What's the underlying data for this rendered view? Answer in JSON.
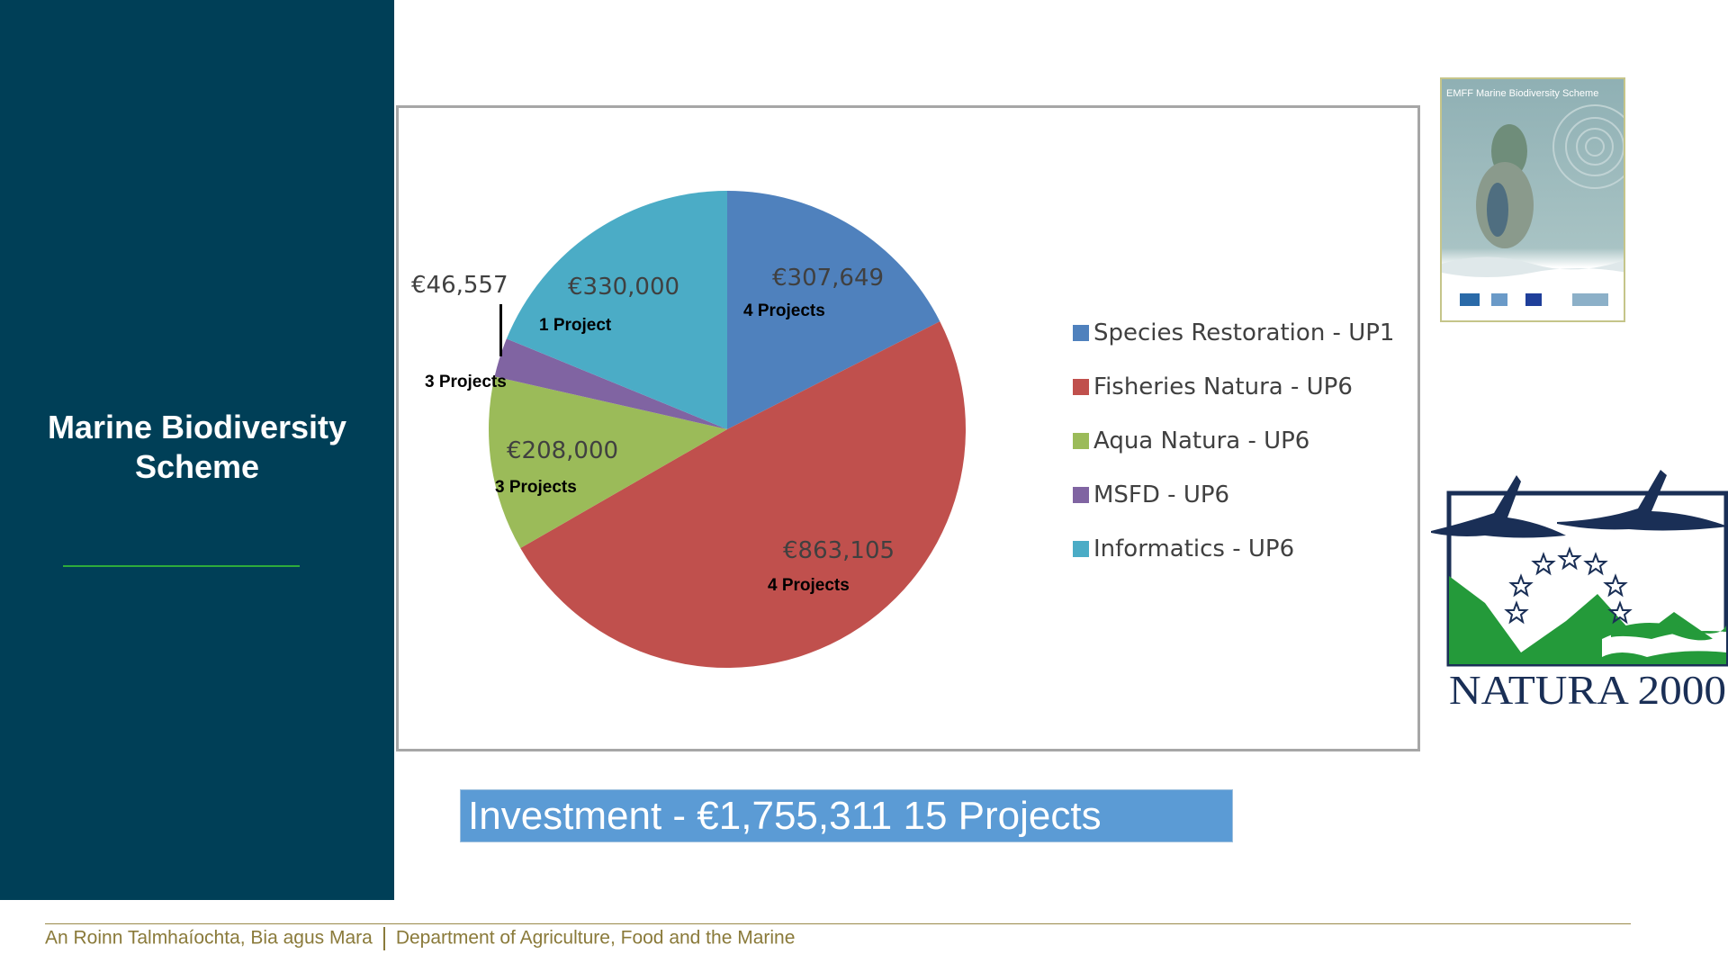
{
  "sidebar": {
    "title_line1": "Marine Biodiversity",
    "title_line2": "Scheme"
  },
  "chart_data": {
    "type": "pie",
    "title": "",
    "start_angle": "12 o'clock, clockwise",
    "categories": [
      "Species Restoration - UP1",
      "Fisheries Natura - UP6",
      "Aqua Natura -  UP6",
      "MSFD - UP6",
      "Informatics - UP6"
    ],
    "values": [
      307649,
      863105,
      208000,
      46557,
      330000
    ],
    "value_labels": [
      "€307,649",
      "€863,105",
      "€208,000",
      "€46,557",
      "€330,000"
    ],
    "project_labels": [
      "4 Projects",
      "4 Projects",
      "3 Projects",
      "3 Projects",
      "1 Project"
    ],
    "colors": [
      "#4f81bd",
      "#c0504d",
      "#9bbb59",
      "#8064a2",
      "#4bacc6"
    ],
    "legend": {
      "placement": "right"
    }
  },
  "investment_text": "Investment - €1,755,311 15 Projects",
  "brochure": {
    "title": "EMFF Marine Biodiversity Scheme"
  },
  "natura_logo_text": "NATURA 2000",
  "footer": {
    "irish": "An Roinn Talmhaíochta, Bia agus Mara",
    "english": "Department of Agriculture, Food and the Marine"
  }
}
